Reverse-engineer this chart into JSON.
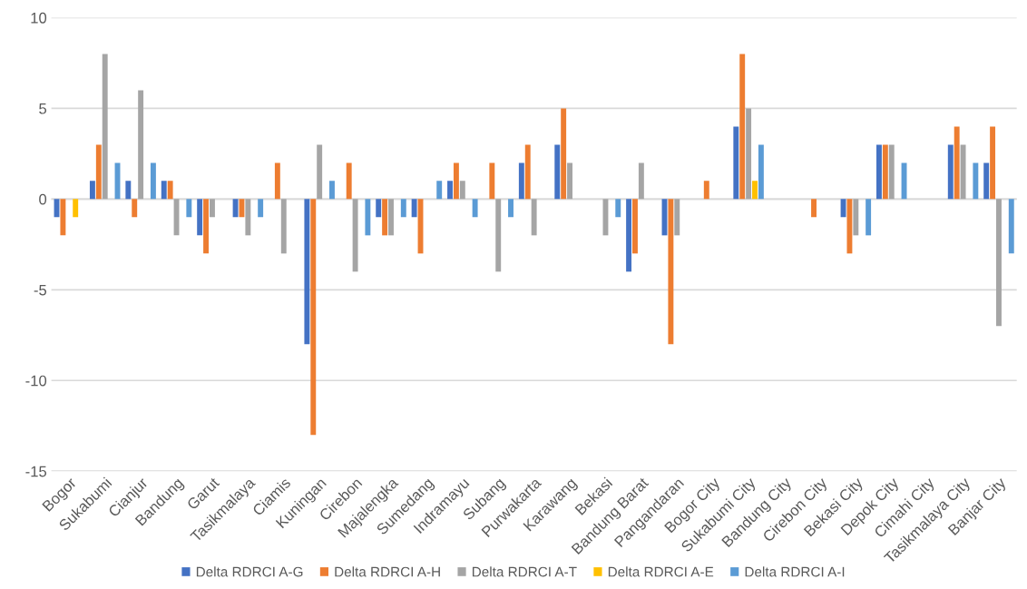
{
  "chart_data": {
    "type": "bar",
    "categories": [
      "Bogor",
      "Sukabumi",
      "Cianjur",
      "Bandung",
      "Garut",
      "Tasikmalaya",
      "Ciamis",
      "Kuningan",
      "Cirebon",
      "Majalengka",
      "Sumedang",
      "Indramayu",
      "Subang",
      "Purwakarta",
      "Karawang",
      "Bekasi",
      "Bandung Barat",
      "Pangandaran",
      "Bogor City",
      "Sukabumi City",
      "Bandung City",
      "Cirebon City",
      "Bekasi City",
      "Depok City",
      "Cimahi City",
      "Tasikmalaya City",
      "Banjar City"
    ],
    "series": [
      {
        "name": "Delta RDRCI A-G",
        "color": "#4472c4",
        "values": [
          -1,
          1,
          1,
          1,
          -2,
          -1,
          0,
          -8,
          0,
          -1,
          -1,
          1,
          0,
          2,
          3,
          0,
          -4,
          -2,
          0,
          4,
          0,
          0,
          -1,
          3,
          0,
          3,
          2
        ]
      },
      {
        "name": "Delta RDRCI A-H",
        "color": "#ed7d31",
        "values": [
          -2,
          3,
          -1,
          1,
          -3,
          -1,
          2,
          -13,
          2,
          -2,
          -3,
          2,
          2,
          3,
          5,
          0,
          -3,
          -8,
          1,
          8,
          0,
          -1,
          -3,
          3,
          0,
          4,
          4
        ]
      },
      {
        "name": "Delta RDRCI A-T",
        "color": "#a5a5a5",
        "values": [
          0,
          8,
          6,
          -2,
          -1,
          -2,
          -3,
          3,
          -4,
          -2,
          0,
          1,
          -4,
          -2,
          2,
          -2,
          2,
          -2,
          0,
          5,
          0,
          0,
          -2,
          3,
          0,
          3,
          -7
        ]
      },
      {
        "name": "Delta RDRCI A-E",
        "color": "#ffc000",
        "values": [
          -1,
          0,
          0,
          0,
          0,
          0,
          0,
          0,
          0,
          0,
          0,
          0,
          0,
          0,
          0,
          0,
          0,
          0,
          0,
          1,
          0,
          0,
          0,
          0,
          0,
          0,
          0
        ]
      },
      {
        "name": "Delta RDRCI A-I",
        "color": "#5b9bd5",
        "values": [
          0,
          2,
          2,
          -1,
          0,
          -1,
          0,
          1,
          -2,
          -1,
          1,
          -1,
          -1,
          0,
          0,
          -1,
          0,
          0,
          0,
          3,
          0,
          0,
          -2,
          2,
          0,
          2,
          -3
        ]
      }
    ],
    "ylim": [
      -15,
      10
    ],
    "yticks": [
      -15,
      -10,
      -5,
      0,
      5,
      10
    ],
    "grid": "y",
    "legend": "bottom"
  }
}
